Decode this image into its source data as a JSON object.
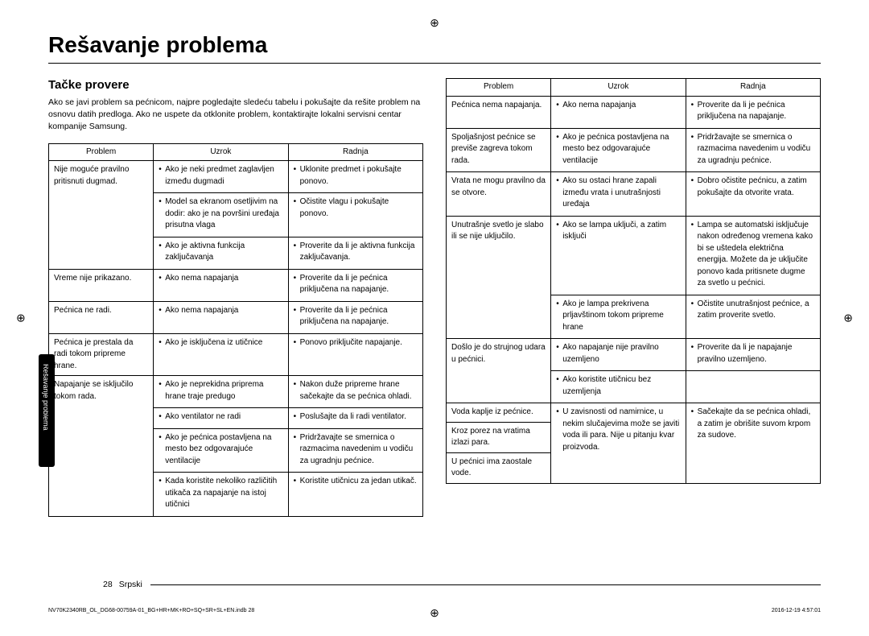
{
  "registration_mark": "⊕",
  "title": "Rešavanje problema",
  "section_title": "Tačke provere",
  "intro": "Ako se javi problem sa pećnicom, najpre pogledajte sledeću tabelu i pokušajte da rešite problem na osnovu datih predloga. Ako ne uspete da otklonite problem, kontaktirajte lokalni servisni centar kompanije Samsung.",
  "side_tab": "Rešavanje problema",
  "headers": {
    "problem": "Problem",
    "uzrok": "Uzrok",
    "radnja": "Radnja"
  },
  "left_rows": [
    {
      "problem": "Nije moguće pravilno pritisnuti dugmad.",
      "pairs": [
        {
          "u": "Ako je neki predmet zaglavljen između dugmadi",
          "r": "Uklonite predmet i pokušajte ponovo."
        },
        {
          "u": "Model sa ekranom osetljivim na dodir: ako je na površini uređaja prisutna vlaga",
          "r": "Očistite vlagu i pokušajte ponovo."
        },
        {
          "u": "Ako je aktivna funkcija zaključavanja",
          "r": "Proverite da li je aktivna funkcija zaključavanja."
        }
      ]
    },
    {
      "problem": "Vreme nije prikazano.",
      "pairs": [
        {
          "u": "Ako nema napajanja",
          "r": "Proverite da li je pećnica priključena na napajanje."
        }
      ]
    },
    {
      "problem": "Pećnica ne radi.",
      "pairs": [
        {
          "u": "Ako nema napajanja",
          "r": "Proverite da li je pećnica priključena na napajanje."
        }
      ]
    },
    {
      "problem": "Pećnica je prestala da radi tokom pripreme hrane.",
      "pairs": [
        {
          "u": "Ako je isključena iz utičnice",
          "r": "Ponovo priključite napajanje."
        }
      ]
    },
    {
      "problem": "Napajanje se isključilo tokom rada.",
      "pairs": [
        {
          "u": "Ako je neprekidna priprema hrane traje predugo",
          "r": "Nakon duže pripreme hrane sačekajte da se pećnica ohladi."
        },
        {
          "u": "Ako ventilator ne radi",
          "r": "Poslušajte da li radi ventilator."
        },
        {
          "u": "Ako je pećnica postavljena na mesto bez odgovarajuće ventilacije",
          "r": "Pridržavajte se smernica o razmacima navedenim u vodiču za ugradnju pećnice."
        },
        {
          "u": "Kada koristite nekoliko različitih utikača za napajanje na istoj utičnici",
          "r": "Koristite utičnicu za jedan utikač."
        }
      ]
    }
  ],
  "right_rows": [
    {
      "problem": "Pećnica nema napajanja.",
      "pairs": [
        {
          "u": "Ako nema napajanja",
          "r": "Proverite da li je pećnica priključena na napajanje."
        }
      ]
    },
    {
      "problem": "Spoljašnjost pećnice se previše zagreva tokom rada.",
      "pairs": [
        {
          "u": "Ako je pećnica postavljena na mesto bez odgovarajuće ventilacije",
          "r": "Pridržavajte se smernica o razmacima navedenim u vodiču za ugradnju pećnice."
        }
      ]
    },
    {
      "problem": "Vrata ne mogu pravilno da se otvore.",
      "pairs": [
        {
          "u": "Ako su ostaci hrane zapali između vrata i unutrašnjosti uređaja",
          "r": "Dobro očistite pećnicu, a zatim pokušajte da otvorite vrata."
        }
      ]
    },
    {
      "problem": "Unutrašnje svetlo je slabo ili se nije uključilo.",
      "pairs": [
        {
          "u": "Ako se lampa uključi, a zatim isključi",
          "r": "Lampa se automatski isključuje nakon određenog vremena kako bi se uštedela električna energija. Možete da je uključite ponovo kada pritisnete dugme za svetlo u pećnici."
        },
        {
          "u": "Ako je lampa prekrivena prljavštinom tokom pripreme hrane",
          "r": "Očistite unutrašnjost pećnice, a zatim proverite svetlo."
        }
      ]
    },
    {
      "problem": "Došlo je do strujnog udara u pećnici.",
      "pairs": [
        {
          "u": "Ako napajanje nije pravilno uzemljeno",
          "r": "Proverite da li je napajanje pravilno uzemljeno."
        },
        {
          "u": "Ako koristite utičnicu bez uzemljenja",
          "r": ""
        }
      ]
    },
    {
      "problem": "Voda kaplje iz pećnice.",
      "rowspan_ur": 3,
      "u": "U zavisnosti od namirnice, u nekim slučajevima može se javiti voda ili para. Nije u pitanju kvar proizvoda.",
      "r": "Sačekajte da se pećnica ohladi, a zatim je obrišite suvom krpom za sudove."
    },
    {
      "problem": "Kroz porez na vratima izlazi para."
    },
    {
      "problem": "U pećnici ima zaostale vode."
    }
  ],
  "page_num": "28",
  "page_lang": "Srpski",
  "meta_left": "NV70K2340RB_OL_DG68-00759A-01_BG+HR+MK+RO+SQ+SR+SL+EN.indb   28",
  "meta_right": "2016-12-19   4:57:01"
}
